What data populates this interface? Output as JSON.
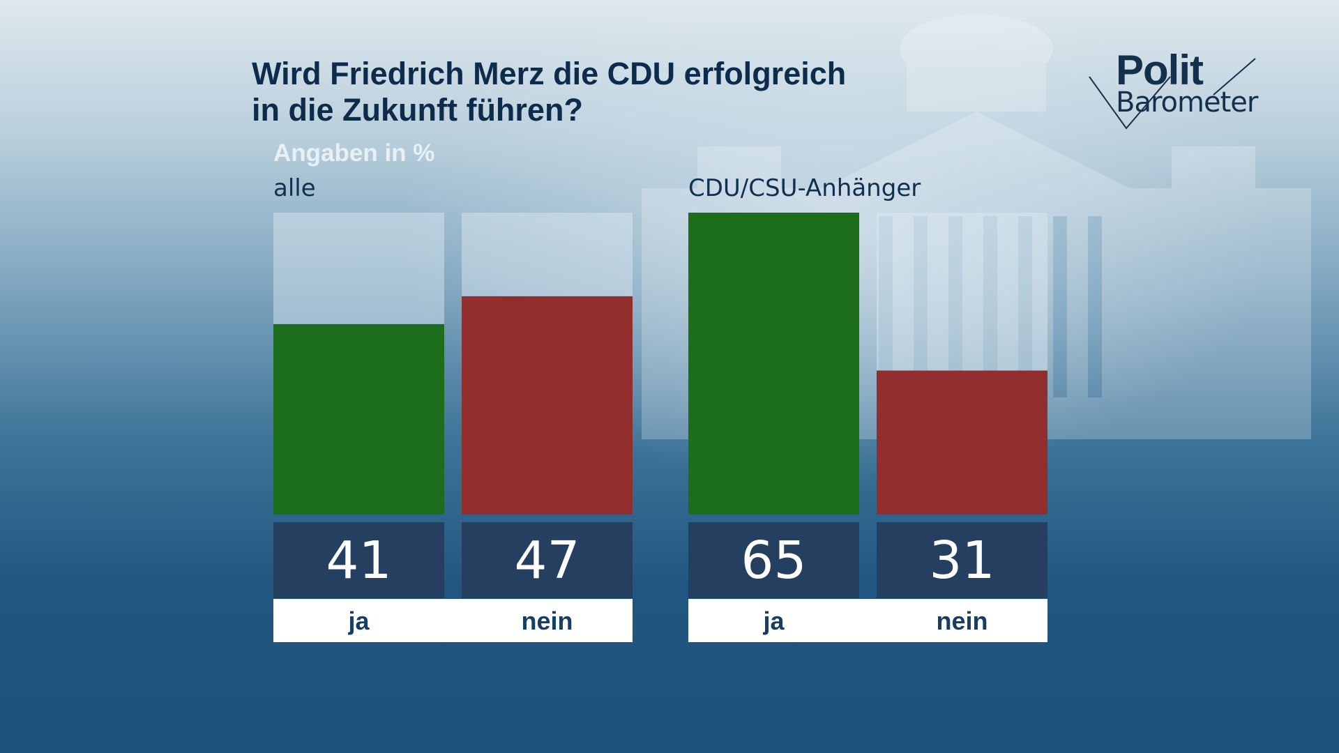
{
  "title_line1": "Wird Friedrich Merz die CDU erfolgreich",
  "title_line2": "in die Zukunft führen?",
  "unit_label": "Angaben in %",
  "logo": {
    "line1": "Polit",
    "line2": "Barometer"
  },
  "colors": {
    "ja": "#1c6e1c",
    "nein": "#932e2e",
    "value_box": "#243f60",
    "track": "rgba(225,235,242,0.45)",
    "category_box": "#ffffff"
  },
  "chart_data": {
    "type": "bar",
    "ylim": [
      0,
      65
    ],
    "ylabel": "Angaben in %",
    "groups": [
      {
        "name": "alle",
        "bars": [
          {
            "category": "ja",
            "value": 41
          },
          {
            "category": "nein",
            "value": 47
          }
        ]
      },
      {
        "name": "CDU/CSU-Anhänger",
        "bars": [
          {
            "category": "ja",
            "value": 65
          },
          {
            "category": "nein",
            "value": 31
          }
        ]
      }
    ]
  }
}
